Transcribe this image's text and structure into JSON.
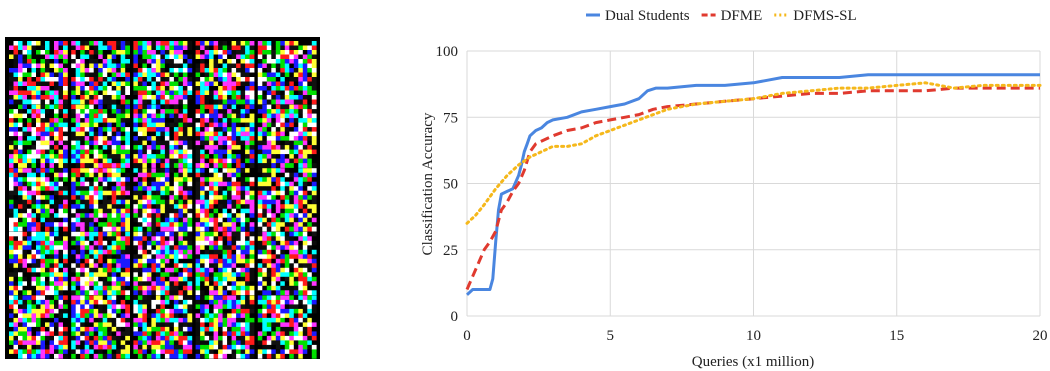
{
  "image_panel": {
    "icon": "noise-grid-image",
    "rows": 5,
    "cols": 5
  },
  "chart_data": {
    "type": "line",
    "title": "",
    "xlabel": "Queries (x1 million)",
    "ylabel": "Classification Accuracy",
    "xlim": [
      0,
      20
    ],
    "ylim": [
      0,
      100
    ],
    "xticks": [
      0,
      5,
      10,
      15,
      20
    ],
    "yticks": [
      0,
      25,
      50,
      75,
      100
    ],
    "grid": "horizontal-and-vertical",
    "legend": "top-center",
    "series": [
      {
        "name": "Dual Students",
        "color": "#4a86e0",
        "style": "solid",
        "x": [
          0,
          0.2,
          0.5,
          0.8,
          0.9,
          1.0,
          1.1,
          1.2,
          1.4,
          1.6,
          1.8,
          1.9,
          2.0,
          2.1,
          2.2,
          2.4,
          2.6,
          2.8,
          3.0,
          3.5,
          4.0,
          4.5,
          5.0,
          5.5,
          6.0,
          6.3,
          6.6,
          7.0,
          8.0,
          9.0,
          10.0,
          10.5,
          11.0,
          12.0,
          13.0,
          14.0,
          15.0,
          16.0,
          17.0,
          18.0,
          19.0,
          20.0
        ],
        "y": [
          8,
          10,
          10,
          10,
          14,
          28,
          40,
          46,
          47,
          48,
          53,
          57,
          62,
          65,
          68,
          70,
          71,
          73,
          74,
          75,
          77,
          78,
          79,
          80,
          82,
          85,
          86,
          86,
          87,
          87,
          88,
          89,
          90,
          90,
          90,
          91,
          91,
          91,
          91,
          91,
          91,
          91
        ]
      },
      {
        "name": "DFME",
        "color": "#e03a2f",
        "style": "dashed",
        "x": [
          0,
          0.2,
          0.4,
          0.6,
          0.8,
          1.0,
          1.2,
          1.4,
          1.6,
          1.8,
          2.0,
          2.2,
          2.4,
          2.6,
          3.0,
          3.5,
          4.0,
          4.5,
          5.0,
          5.5,
          6.0,
          6.5,
          7.0,
          8.0,
          9.0,
          10.0,
          11.0,
          12.0,
          13.0,
          14.0,
          15.0,
          16.0,
          17.0,
          18.0,
          19.0,
          20.0
        ],
        "y": [
          10,
          15,
          20,
          25,
          28,
          32,
          40,
          43,
          47,
          50,
          55,
          62,
          65,
          66,
          68,
          70,
          71,
          73,
          74,
          75,
          76,
          78,
          79,
          80,
          81,
          82,
          83,
          84,
          84,
          85,
          85,
          85,
          86,
          86,
          86,
          86
        ]
      },
      {
        "name": "DFMS-SL",
        "color": "#f5b81b",
        "style": "dotted",
        "x": [
          0,
          0.3,
          0.6,
          1.0,
          1.4,
          1.8,
          2.2,
          2.6,
          3.0,
          3.5,
          4.0,
          4.5,
          5.0,
          5.5,
          6.0,
          7.0,
          8.0,
          9.0,
          10.0,
          11.0,
          12.0,
          13.0,
          14.0,
          15.0,
          16.0,
          17.0,
          18.0,
          19.0,
          20.0
        ],
        "y": [
          35,
          38,
          42,
          48,
          53,
          57,
          60,
          62,
          64,
          64,
          65,
          68,
          70,
          72,
          74,
          78,
          80,
          81,
          82,
          84,
          85,
          86,
          86,
          87,
          88,
          86,
          87,
          87,
          87
        ]
      }
    ]
  }
}
